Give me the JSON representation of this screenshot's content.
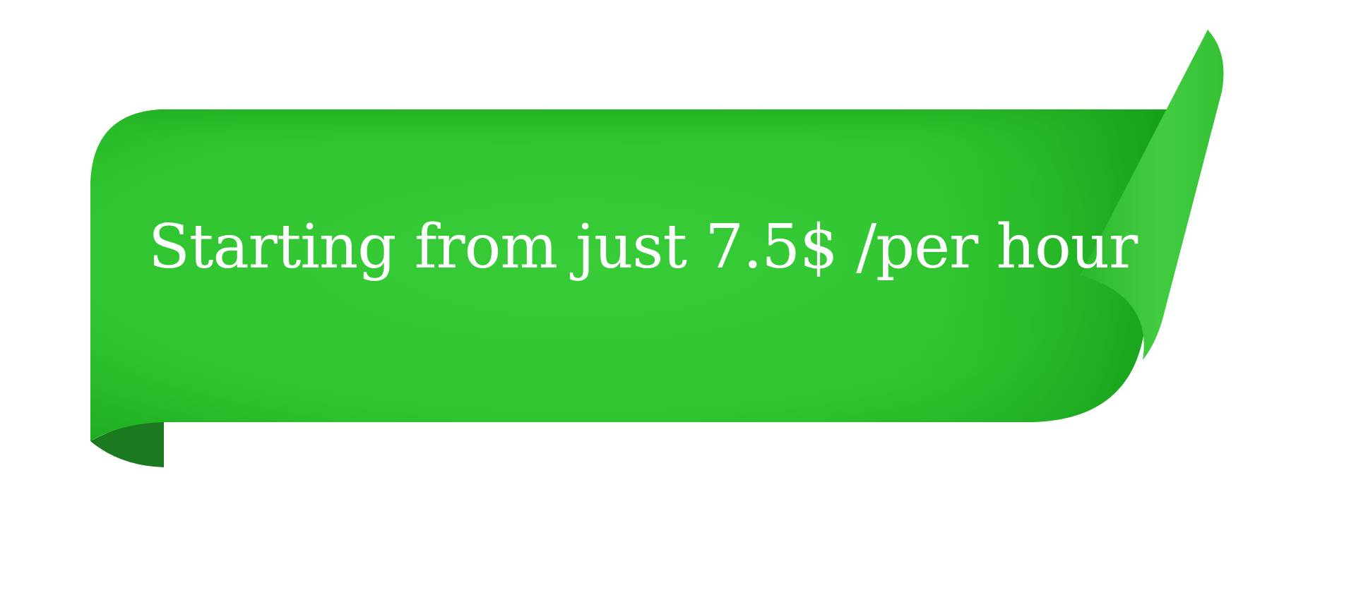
{
  "banner": {
    "text": "Starting from just 7.5$ /per hour",
    "colors": {
      "ribbon_main": "#2fc42f",
      "ribbon_dark": "#16991a",
      "fold_shadow": "#1b7a1f",
      "curl_light": "#3cc93c",
      "text": "#ffffff"
    }
  }
}
